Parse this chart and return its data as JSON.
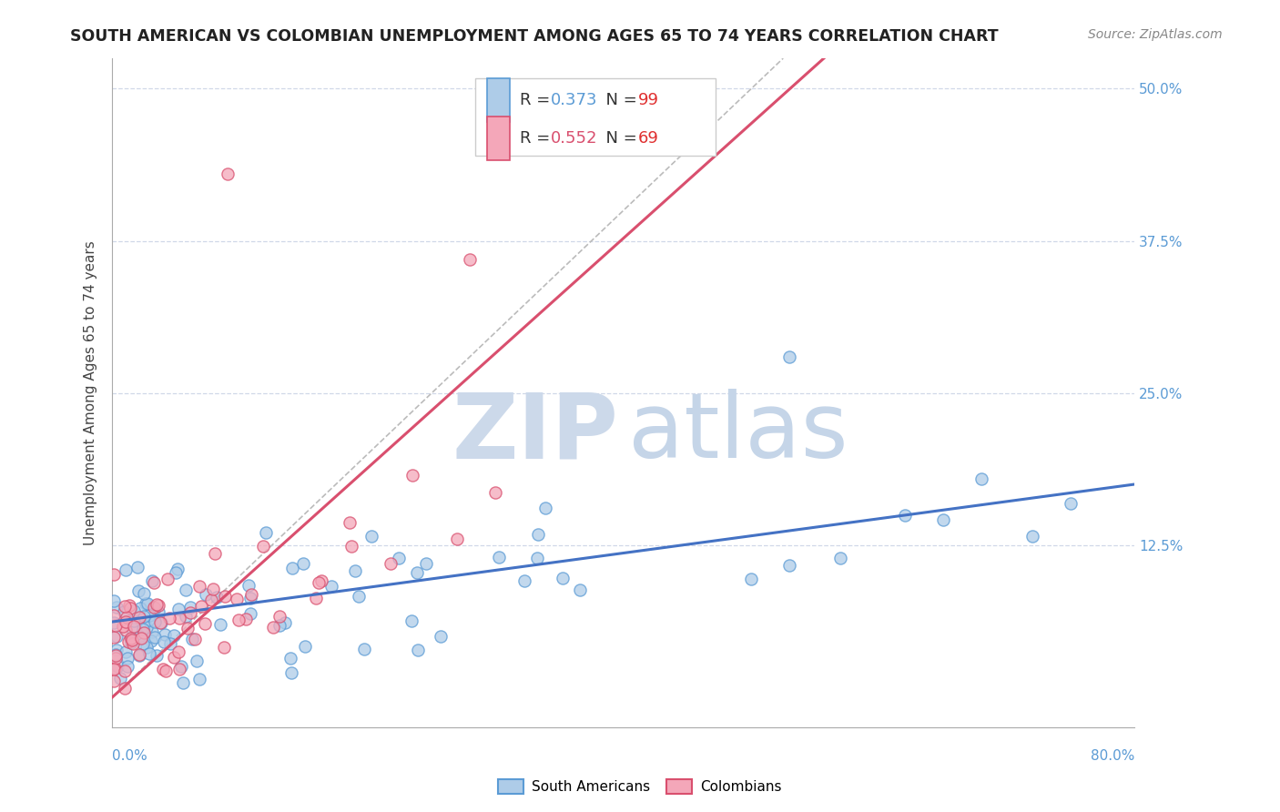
{
  "title": "SOUTH AMERICAN VS COLOMBIAN UNEMPLOYMENT AMONG AGES 65 TO 74 YEARS CORRELATION CHART",
  "source": "Source: ZipAtlas.com",
  "ylabel": "Unemployment Among Ages 65 to 74 years",
  "ytick_labels": [
    "12.5%",
    "25.0%",
    "37.5%",
    "50.0%"
  ],
  "ytick_values": [
    0.125,
    0.25,
    0.375,
    0.5
  ],
  "xmin": 0.0,
  "xmax": 0.8,
  "ymin": -0.025,
  "ymax": 0.525,
  "blue_color": "#aecce8",
  "blue_edge": "#5b9bd5",
  "pink_color": "#f4a7b9",
  "pink_edge": "#d94f6e",
  "regression_blue": "#4472c4",
  "regression_pink": "#d94f6e",
  "diagonal_color": "#bbbbbb",
  "watermark_zip_color": "#ccd9ea",
  "watermark_atlas_color": "#c5d5e8",
  "legend_box_color": "#d0e4f5",
  "legend_box_edge": "#aaaaaa",
  "background": "#ffffff",
  "grid_color": "#d0d8e8",
  "title_fontsize": 12.5,
  "source_fontsize": 10,
  "axis_label_fontsize": 11,
  "tick_fontsize": 11,
  "legend_fontsize": 13,
  "R_blue": "0.373",
  "N_blue": "99",
  "R_pink": "0.552",
  "N_pink": "69",
  "R_color_blue": "#5b9bd5",
  "N_color_blue": "#e03030",
  "R_color_pink": "#d94f6e",
  "N_color_pink": "#e03030"
}
